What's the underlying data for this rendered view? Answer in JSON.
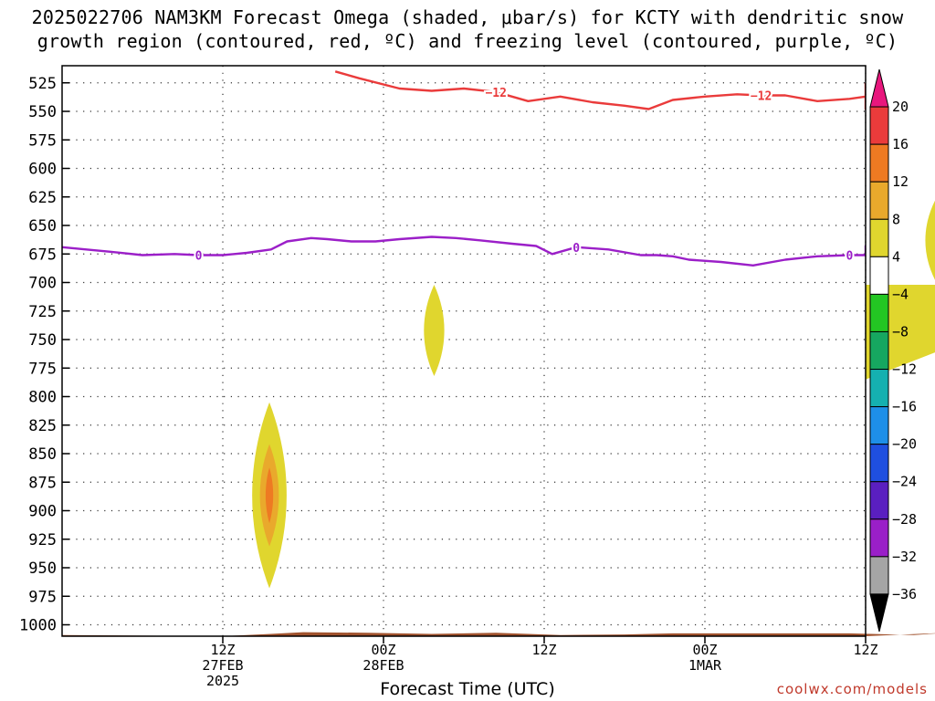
{
  "title": {
    "line1": "2025022706 NAM3KM Forecast Omega (shaded, μbar/s) for KCTY with dendritic snow",
    "line2": "growth region (contoured, red, ºC) and freezing level (contoured, purple, ºC)"
  },
  "credit": "coolwx.com/models",
  "chart_data": {
    "type": "time-height cross section",
    "xlabel": "Forecast Time (UTC)",
    "ylabel": "",
    "x_range_hours": [
      -5,
      45
    ],
    "y_range_mb": [
      510,
      1010
    ],
    "y_axis_inverted": true,
    "grid": true,
    "y_ticks": [
      525,
      550,
      575,
      600,
      625,
      650,
      675,
      700,
      725,
      750,
      775,
      800,
      825,
      850,
      875,
      900,
      925,
      950,
      975,
      1000
    ],
    "x_ticks": [
      {
        "hour": 5,
        "lines": [
          "12Z",
          "27FEB",
          "2025"
        ]
      },
      {
        "hour": 15,
        "lines": [
          "00Z",
          "28FEB"
        ]
      },
      {
        "hour": 25,
        "lines": [
          "12Z"
        ]
      },
      {
        "hour": 35,
        "lines": [
          "00Z",
          "1MAR"
        ]
      },
      {
        "hour": 45,
        "lines": [
          "12Z"
        ]
      }
    ],
    "colorbar": {
      "labels": [
        "20",
        "16",
        "12",
        "8",
        "4",
        "−4",
        "−8",
        "−12",
        "−16",
        "−20",
        "−24",
        "−28",
        "−32",
        "−36"
      ],
      "colors": [
        "#e8177d",
        "#ea3b3b",
        "#ee7a22",
        "#e9a92c",
        "#e0d62e",
        "#ffffff",
        "#23c623",
        "#16a760",
        "#15b0b0",
        "#1e8fe8",
        "#1f4fe0",
        "#5a1fc0",
        "#9a1fc8",
        "#a5a5a5",
        "#000000"
      ]
    },
    "freezing_level_0C": {
      "color": "#9b1fc8",
      "label": "0",
      "points": [
        [
          -5,
          669
        ],
        [
          -2,
          673
        ],
        [
          0,
          676
        ],
        [
          2,
          675
        ],
        [
          3.5,
          676
        ],
        [
          5,
          676
        ],
        [
          6.5,
          674
        ],
        [
          8,
          671
        ],
        [
          9,
          664
        ],
        [
          10.5,
          661
        ],
        [
          11.5,
          662
        ],
        [
          13,
          664
        ],
        [
          14.5,
          664
        ],
        [
          16,
          662
        ],
        [
          18,
          660
        ],
        [
          19.5,
          661
        ],
        [
          21,
          663
        ],
        [
          23,
          666
        ],
        [
          24.5,
          668
        ],
        [
          25.5,
          675
        ],
        [
          27,
          669
        ],
        [
          29,
          671
        ],
        [
          31,
          676
        ],
        [
          32,
          676
        ],
        [
          33,
          677
        ],
        [
          34,
          680
        ],
        [
          36,
          682
        ],
        [
          38,
          685
        ],
        [
          40,
          680
        ],
        [
          42,
          677
        ],
        [
          44,
          676
        ],
        [
          45,
          676
        ],
        [
          46.5,
          668
        ],
        [
          48,
          675
        ],
        [
          50,
          676
        ]
      ]
    },
    "dgz_minus12C": {
      "color": "#ea3b3b",
      "label": "−12",
      "points": [
        [
          12,
          515
        ],
        [
          13.5,
          521
        ],
        [
          16,
          530
        ],
        [
          18,
          532
        ],
        [
          20,
          530
        ],
        [
          22,
          533
        ],
        [
          24,
          541
        ],
        [
          26,
          537
        ],
        [
          28,
          542
        ],
        [
          30,
          545
        ],
        [
          31.5,
          548
        ],
        [
          33,
          540
        ],
        [
          35,
          537
        ],
        [
          37,
          535
        ],
        [
          38.5,
          536
        ],
        [
          40,
          536
        ],
        [
          42,
          541
        ],
        [
          44,
          539
        ],
        [
          46,
          537
        ],
        [
          47,
          540
        ],
        [
          48.5,
          548
        ],
        [
          49.5,
          548
        ],
        [
          51,
          545
        ],
        [
          52.5,
          538
        ],
        [
          54,
          530
        ],
        [
          55,
          525
        ]
      ]
    },
    "omega_positive_regions": [
      {
        "name": "early morning 28FEB low levels",
        "hours": [
          6.8,
          9.0
        ],
        "pressure_mb": [
          805,
          968
        ],
        "max_ubar_s": 12
      },
      {
        "name": "midday 28FEB mid levels",
        "hours": [
          17.5,
          18.8
        ],
        "pressure_mb": [
          702,
          782
        ],
        "max_ubar_s": 4
      },
      {
        "name": "late 1MAR mid levels",
        "hours": [
          48.7,
          50.1
        ],
        "pressure_mb": [
          626,
          700
        ],
        "max_ubar_s": 4
      },
      {
        "name": "late 1MAR edge",
        "hours": [
          54.8,
          56.0
        ],
        "pressure_mb": [
          702,
          785
        ],
        "max_ubar_s": 4
      }
    ]
  }
}
